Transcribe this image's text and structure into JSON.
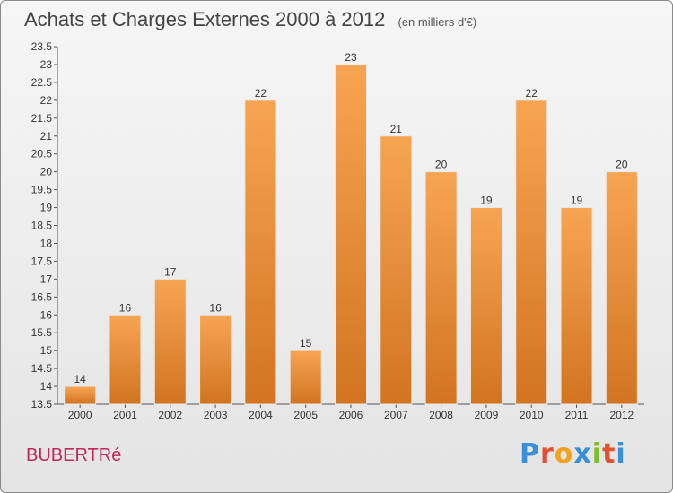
{
  "header": {
    "title": "Achats et Charges Externes 2000 à 2012",
    "subtitle": "(en milliers d'€)"
  },
  "footer": {
    "commune": "BUBERTRé",
    "logo": "Proxiti"
  },
  "colors": {
    "bar_light": "#f7a553",
    "bar_dark": "#d27420",
    "commune_text": "#c0275a"
  },
  "chart_data": {
    "type": "bar",
    "categories": [
      "2000",
      "2001",
      "2002",
      "2003",
      "2004",
      "2005",
      "2006",
      "2007",
      "2008",
      "2009",
      "2010",
      "2011",
      "2012"
    ],
    "values": [
      14,
      16,
      17,
      16,
      22,
      15,
      23,
      21,
      20,
      19,
      22,
      19,
      20
    ],
    "ylim": [
      13.5,
      23.5
    ],
    "yticks": [
      "13.5",
      "14",
      "14.5",
      "15",
      "15.5",
      "16",
      "16.5",
      "17",
      "17.5",
      "18",
      "18.5",
      "19",
      "19.5",
      "20",
      "20.5",
      "21",
      "21.5",
      "22",
      "22.5",
      "23",
      "23.5"
    ],
    "grid": false,
    "data_labels": true
  }
}
